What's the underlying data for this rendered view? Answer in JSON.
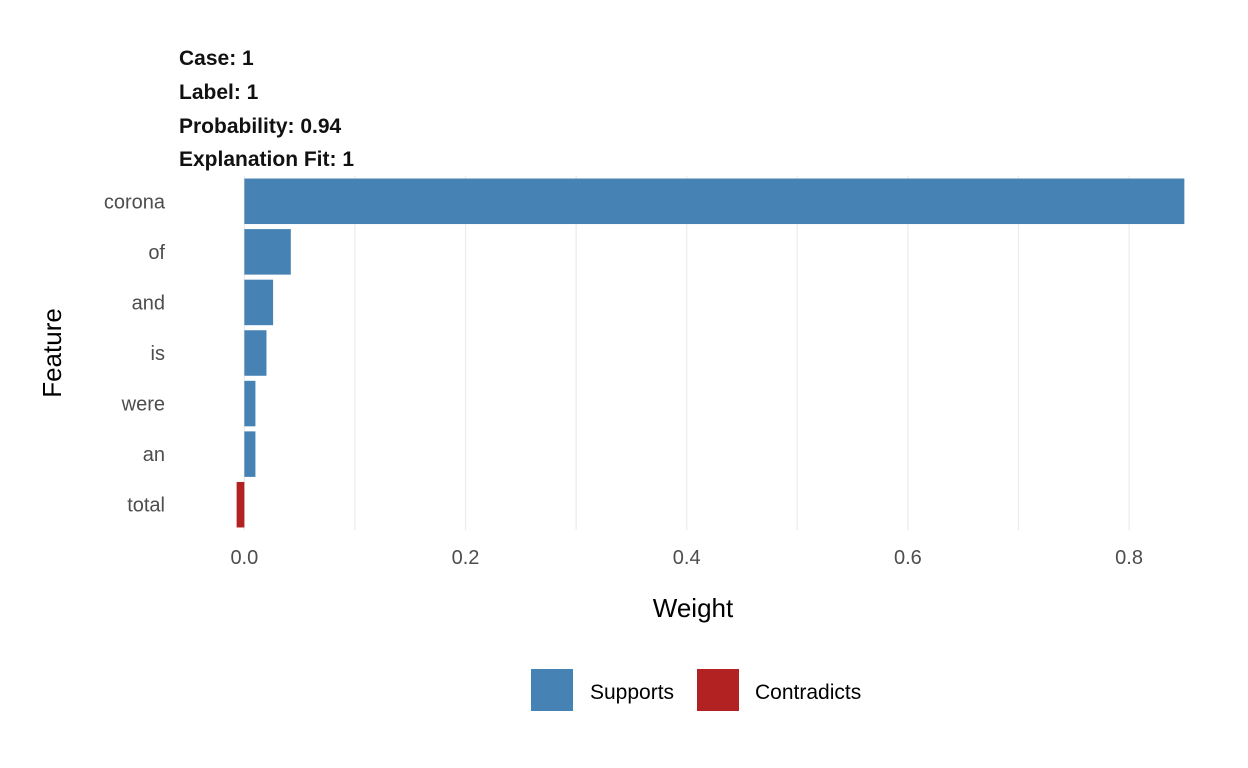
{
  "chart_data": {
    "type": "bar",
    "orientation": "horizontal",
    "title_lines": [
      "Case: 1",
      "Label: 1",
      "Probability: 0.94",
      "Explanation Fit: 1"
    ],
    "xlabel": "Weight",
    "ylabel": "Feature",
    "categories": [
      "corona",
      "of",
      "and",
      "is",
      "were",
      "an",
      "total"
    ],
    "values": [
      0.85,
      0.042,
      0.026,
      0.02,
      0.01,
      0.01,
      -0.007
    ],
    "xlim": [
      -0.06,
      0.875
    ],
    "xticks": [
      0.0,
      0.2,
      0.4,
      0.6,
      0.8
    ],
    "xtick_labels": [
      "0.0",
      "0.2",
      "0.4",
      "0.6",
      "0.8"
    ],
    "grid": true,
    "legend": {
      "position": "bottom",
      "entries": [
        {
          "label": "Supports",
          "color": "#4682b4"
        },
        {
          "label": "Contradicts",
          "color": "#b22222"
        }
      ]
    }
  }
}
